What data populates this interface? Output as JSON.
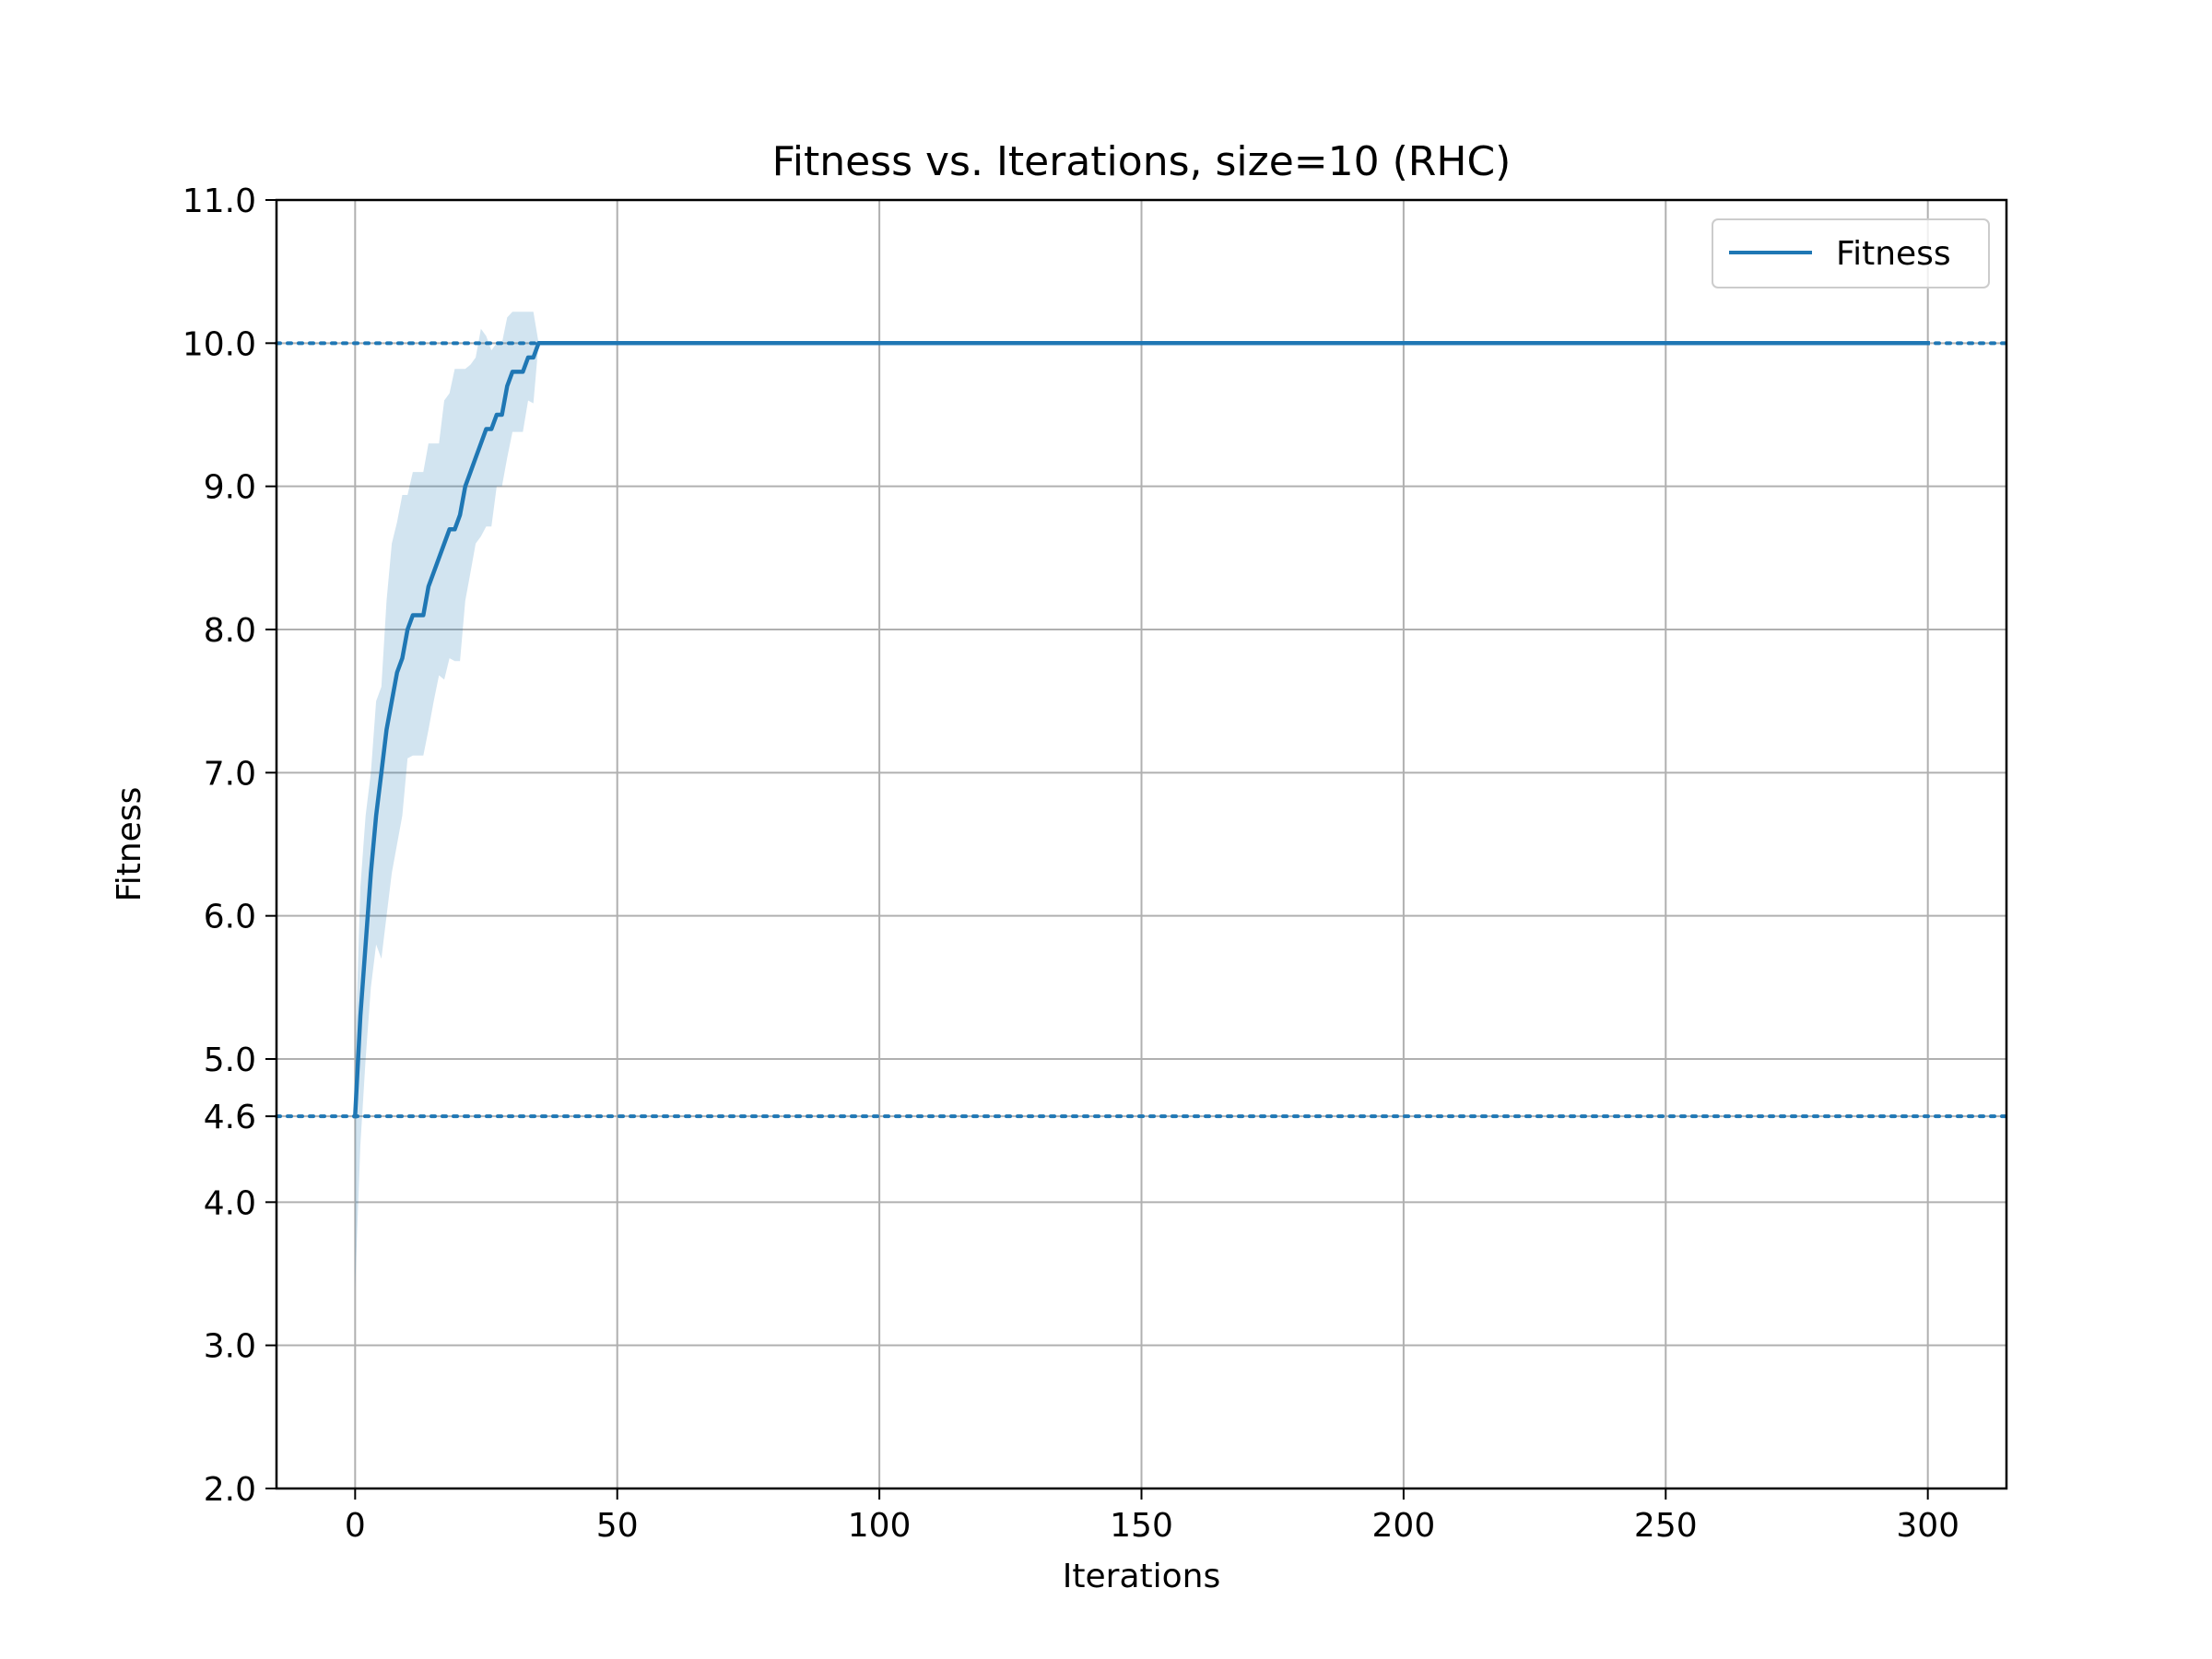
{
  "chart_data": {
    "type": "line",
    "title": "Fitness vs. Iterations, size=10 (RHC)",
    "xlabel": "Iterations",
    "ylabel": "Fitness",
    "xlim": [
      -15,
      315
    ],
    "ylim": [
      2.0,
      11.0
    ],
    "x_ticks": [
      0,
      50,
      100,
      150,
      200,
      250,
      300
    ],
    "x_tick_labels": [
      "0",
      "50",
      "100",
      "150",
      "200",
      "250",
      "300"
    ],
    "y_ticks": [
      2.0,
      3.0,
      4.0,
      4.6,
      5.0,
      6.0,
      7.0,
      8.0,
      9.0,
      10.0,
      11.0
    ],
    "y_tick_labels": [
      "2.0",
      "3.0",
      "4.0",
      "4.6",
      "5.0",
      "6.0",
      "7.0",
      "8.0",
      "9.0",
      "10.0",
      "11.0"
    ],
    "grid": true,
    "legend_position": "top-right",
    "reference_lines": [
      {
        "y": 10.0,
        "style": "dotted"
      },
      {
        "y": 4.6,
        "style": "dotted"
      }
    ],
    "series": [
      {
        "name": "Fitness",
        "color": "#1f77b4",
        "x": [
          0,
          1,
          2,
          3,
          4,
          5,
          6,
          7,
          8,
          9,
          10,
          11,
          12,
          13,
          14,
          15,
          16,
          17,
          18,
          19,
          20,
          21,
          22,
          23,
          24,
          25,
          26,
          27,
          28,
          29,
          30,
          31,
          32,
          33,
          34,
          35,
          300
        ],
        "y": [
          4.6,
          5.3,
          5.8,
          6.3,
          6.7,
          7.0,
          7.3,
          7.5,
          7.7,
          7.8,
          8.0,
          8.1,
          8.1,
          8.1,
          8.3,
          8.4,
          8.5,
          8.6,
          8.7,
          8.7,
          8.8,
          9.0,
          9.1,
          9.2,
          9.3,
          9.4,
          9.4,
          9.5,
          9.5,
          9.7,
          9.8,
          9.8,
          9.8,
          9.9,
          9.9,
          10.0,
          10.0
        ],
        "band_lower": [
          3.4,
          4.4,
          5.0,
          5.5,
          5.8,
          5.7,
          6.0,
          6.3,
          6.5,
          6.7,
          7.1,
          7.12,
          7.12,
          7.12,
          7.3,
          7.5,
          7.68,
          7.65,
          7.8,
          7.78,
          7.78,
          8.2,
          8.4,
          8.6,
          8.65,
          8.72,
          8.72,
          9.0,
          9.0,
          9.2,
          9.38,
          9.38,
          9.38,
          9.6,
          9.58,
          10.0,
          10.0
        ],
        "band_upper": [
          5.0,
          6.2,
          6.7,
          7.0,
          7.5,
          7.6,
          8.2,
          8.6,
          8.75,
          8.94,
          8.94,
          9.1,
          9.1,
          9.1,
          9.3,
          9.3,
          9.3,
          9.6,
          9.65,
          9.82,
          9.82,
          9.82,
          9.85,
          9.9,
          10.1,
          10.05,
          9.95,
          10.0,
          10.0,
          10.18,
          10.22,
          10.22,
          10.22,
          10.22,
          10.22,
          10.0,
          10.0
        ]
      }
    ]
  }
}
